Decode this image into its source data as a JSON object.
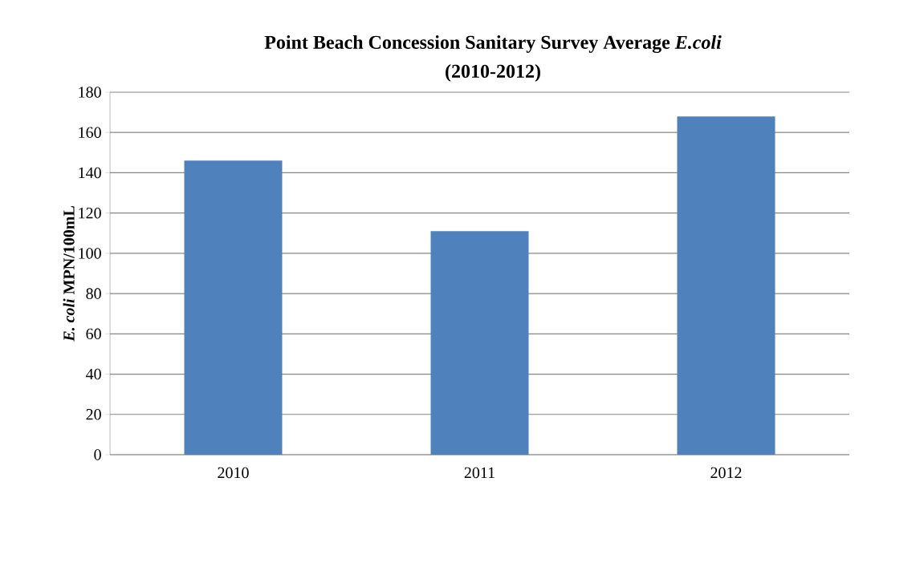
{
  "chart_data": {
    "type": "bar",
    "title": "Point Beach Concession Sanitary Survey Average *E.coli*",
    "subtitle": "(2010-2012)",
    "ylabel": "*E. coli* MPN/100mL",
    "categories": [
      "2010",
      "2011",
      "2012"
    ],
    "values": [
      146,
      111,
      168
    ],
    "color": "#4f81bd",
    "ylim": [
      0,
      180
    ],
    "yticks": [
      0,
      20,
      40,
      60,
      80,
      100,
      120,
      140,
      160,
      180
    ],
    "grid": "y"
  }
}
